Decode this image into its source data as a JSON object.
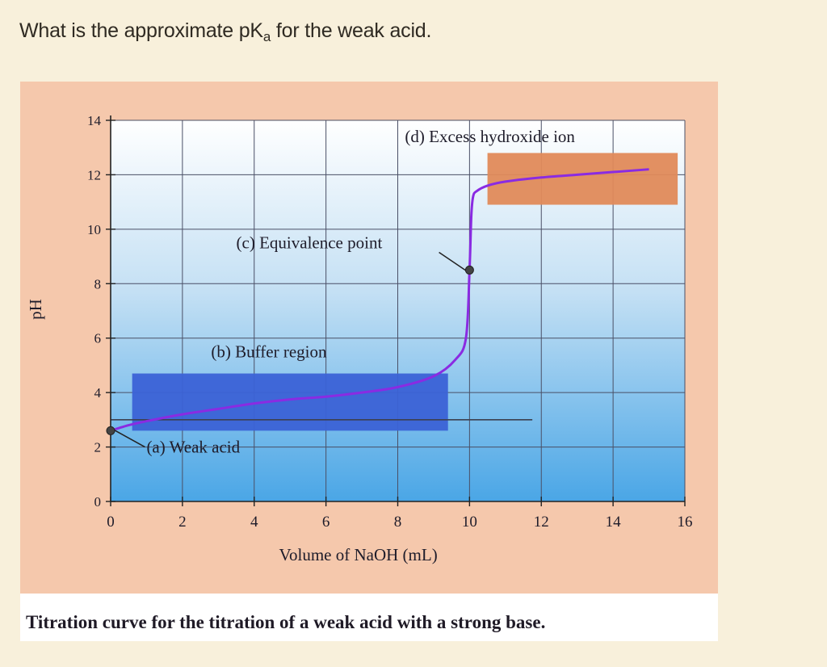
{
  "question": {
    "prefix": "What is the approximate pK",
    "sub": "a",
    "suffix": " for the weak acid."
  },
  "caption": "Titration curve for the titration of a weak acid with a strong base.",
  "colors": {
    "curve": "#8a2be2",
    "buffer_box": "#3b62d6",
    "excess_box": "#e08a5a",
    "plot_top": "#ffffff",
    "plot_bottom": "#4aa6e6",
    "grid": "#4a4f66"
  },
  "chart_data": {
    "type": "line",
    "title": "",
    "xlabel": "Volume of NaOH (mL)",
    "ylabel": "pH",
    "xlim": [
      0,
      16
    ],
    "ylim": [
      0,
      14
    ],
    "xticks": [
      0,
      2,
      4,
      6,
      8,
      10,
      12,
      14,
      16
    ],
    "yticks": [
      0,
      2,
      4,
      6,
      8,
      10,
      12,
      14
    ],
    "grid": true,
    "series": [
      {
        "values_x": [
          0,
          0.5,
          1,
          2,
          3,
          4,
          5,
          6,
          7,
          8,
          9,
          9.6,
          9.9,
          10.0,
          10.05,
          10.1,
          10.2,
          10.5,
          11,
          12,
          13,
          14,
          15
        ],
        "values_y": [
          2.6,
          2.8,
          2.95,
          3.2,
          3.4,
          3.6,
          3.75,
          3.85,
          4.0,
          4.2,
          4.6,
          5.2,
          6.0,
          8.5,
          10.5,
          11.2,
          11.4,
          11.6,
          11.75,
          11.9,
          12.0,
          12.1,
          12.2
        ]
      }
    ],
    "markers": [
      {
        "x": 0,
        "y": 2.6
      },
      {
        "x": 10,
        "y": 8.5
      }
    ],
    "reference_line": {
      "y": 3.0,
      "x_end": 11.75
    },
    "regions": [
      {
        "label": "(b) Buffer region",
        "x_range": [
          0.6,
          9.4
        ],
        "y_range": [
          2.6,
          4.7
        ]
      },
      {
        "label": "(d) Excess hydroxide ion",
        "x_range": [
          10.5,
          15.8
        ],
        "y_range": [
          10.9,
          12.8
        ]
      }
    ],
    "annotations": [
      {
        "label": "(a) Weak acid",
        "x": 1.0,
        "y": 2.0
      },
      {
        "label": "(c) Equivalence point",
        "x": 3.5,
        "y": 9.5
      },
      {
        "label": "(b) Buffer region",
        "x": 2.8,
        "y": 5.5
      },
      {
        "label": "(d) Excess hydroxide ion",
        "x": 8.2,
        "y": 13.4
      }
    ]
  }
}
